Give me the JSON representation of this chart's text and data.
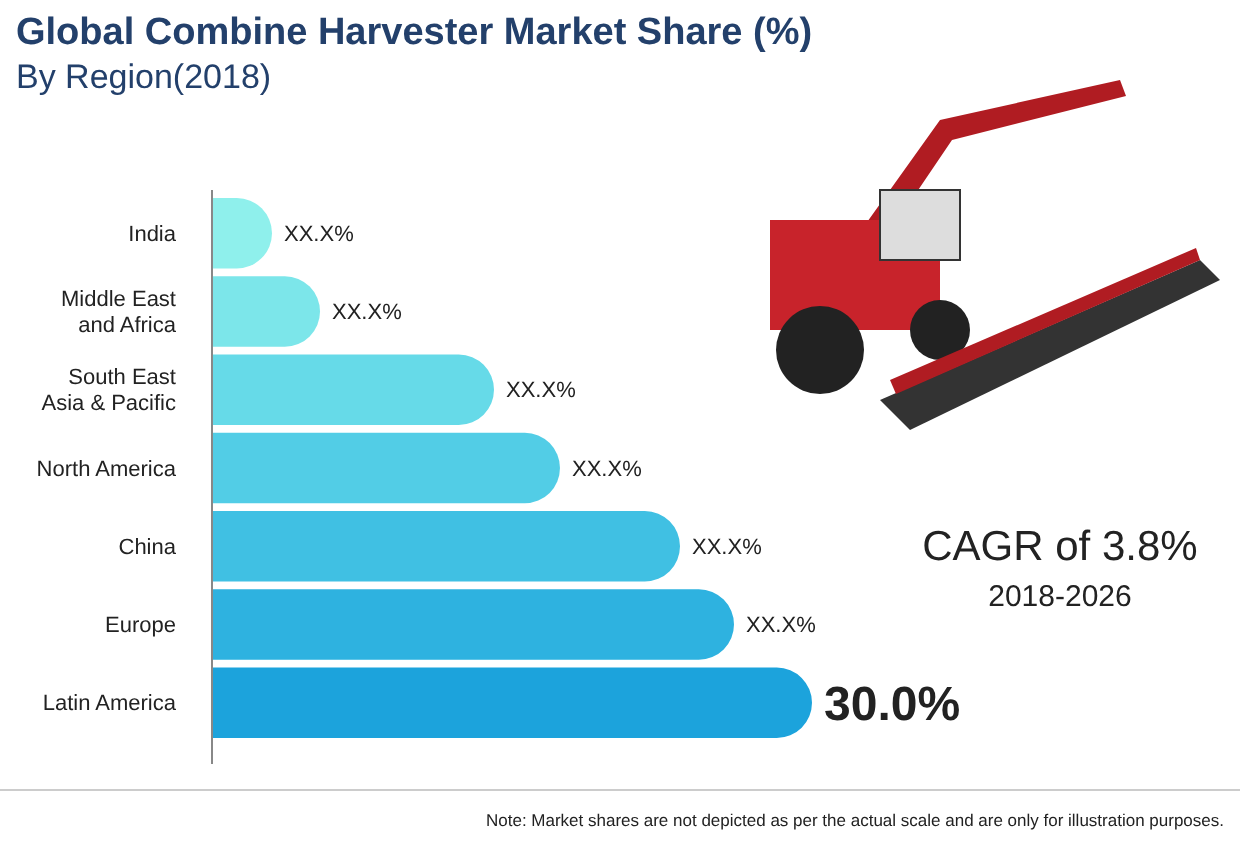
{
  "chart_data": {
    "type": "bar",
    "orientation": "horizontal",
    "title": "Global Combine Harvester Market Share (%)",
    "subtitle": "By Region(2018)",
    "categories": [
      "India",
      "Middle East and Africa",
      "South East Asia & Pacific",
      "North America",
      "China",
      "Europe",
      "Latin America"
    ],
    "values": [
      3,
      5.4,
      14.1,
      17.4,
      23.4,
      26.1,
      30.0
    ],
    "value_labels": [
      "XX.X%",
      "XX.X%",
      "XX.X%",
      "XX.X%",
      "XX.X%",
      "XX.X%",
      "30.0%"
    ],
    "colors": [
      "#8ff0ec",
      "#7ce6ea",
      "#66dae8",
      "#52cde6",
      "#40c0e3",
      "#2eb2e0",
      "#1ca3dc"
    ],
    "annotations": [
      "CAGR of 3.8%",
      "2018-2026",
      "Note: Market shares are not depicted as per the actual scale and are only for illustration purposes."
    ]
  }
}
